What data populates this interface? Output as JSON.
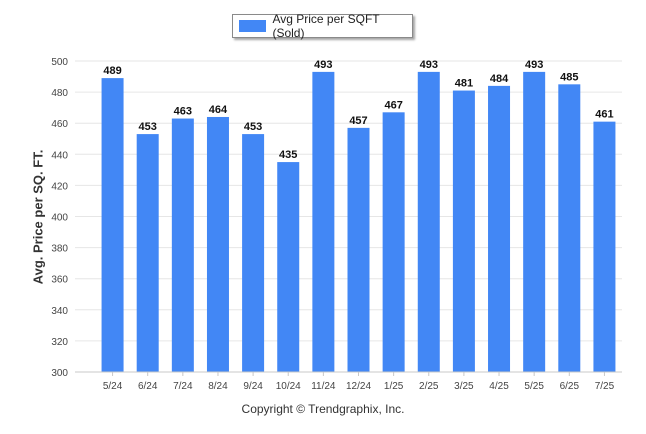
{
  "chart_data": {
    "type": "bar",
    "title": "",
    "xlabel": "",
    "ylabel": "Avg. Price per SQ. FT.",
    "ylim": [
      300,
      500
    ],
    "yticks": [
      300,
      320,
      340,
      360,
      380,
      400,
      420,
      440,
      460,
      480,
      500
    ],
    "categories": [
      "5/24",
      "6/24",
      "7/24",
      "8/24",
      "9/24",
      "10/24",
      "11/24",
      "12/24",
      "1/25",
      "2/25",
      "3/25",
      "4/25",
      "5/25",
      "6/25",
      "7/25"
    ],
    "series": [
      {
        "name": "Avg Price per SQFT (Sold)",
        "values": [
          489,
          453,
          463,
          464,
          453,
          435,
          493,
          457,
          467,
          493,
          481,
          484,
          493,
          485,
          461
        ],
        "color": "#4287f5"
      }
    ],
    "data_labels": true,
    "grid": true,
    "legend_position": "top-center"
  },
  "footer": "Copyright © Trendgraphix, Inc."
}
